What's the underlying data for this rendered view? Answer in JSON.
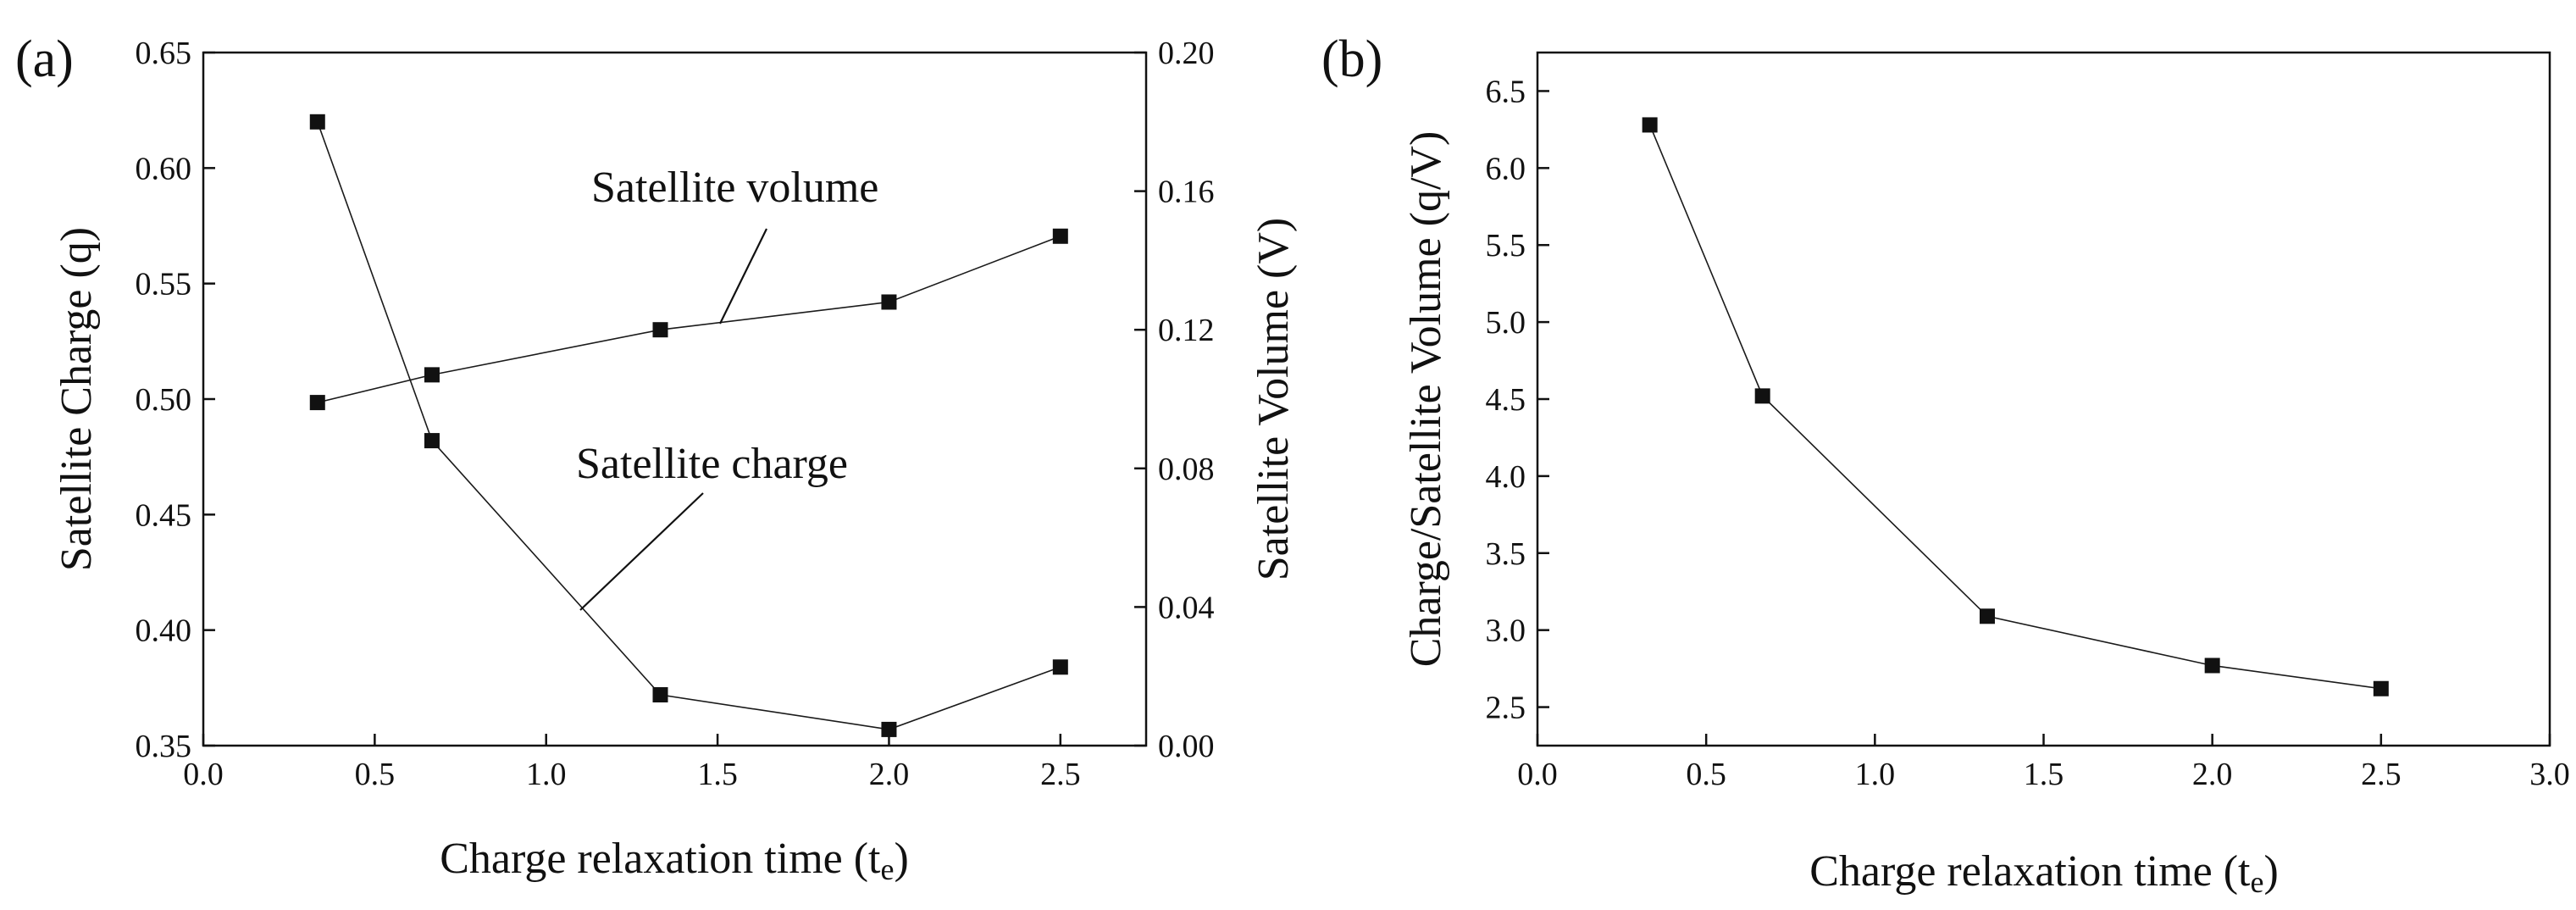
{
  "chart_data": [
    {
      "panel_label": "(a)",
      "type": "line",
      "xlabel": "Charge relaxation time (te)",
      "xlabel_main": "Charge relaxation time (t",
      "xlabel_sub": "e",
      "xlabel_close": ")",
      "ylabel_left": "Satellite Charge (q)",
      "ylabel_right": "Satellite Volume (V)",
      "xlim": [
        0.0,
        2.75
      ],
      "ylim_left": [
        0.35,
        0.65
      ],
      "ylim_right": [
        0.0,
        0.2
      ],
      "xticks": [
        "0.0",
        "0.5",
        "1.0",
        "1.5",
        "2.0",
        "2.5"
      ],
      "xtick_values": [
        0.0,
        0.5,
        1.0,
        1.5,
        2.0,
        2.5
      ],
      "yticks_left": [
        "0.35",
        "0.40",
        "0.45",
        "0.50",
        "0.55",
        "0.60",
        "0.65"
      ],
      "yticks_left_values": [
        0.35,
        0.4,
        0.45,
        0.5,
        0.55,
        0.6,
        0.65
      ],
      "yticks_right": [
        "0.00",
        "0.04",
        "0.08",
        "0.12",
        "0.16",
        "0.20"
      ],
      "yticks_right_values": [
        0.0,
        0.04,
        0.08,
        0.12,
        0.16,
        0.2
      ],
      "series": [
        {
          "name": "Satellite charge",
          "axis": "left",
          "x": [
            0.333,
            0.667,
            1.333,
            2.0,
            2.5
          ],
          "values": [
            0.62,
            0.482,
            0.372,
            0.357,
            0.384
          ]
        },
        {
          "name": "Satellite volume",
          "axis": "right",
          "x": [
            0.333,
            0.667,
            1.333,
            2.0,
            2.5
          ],
          "values": [
            0.099,
            0.107,
            0.12,
            0.128,
            0.147
          ]
        }
      ],
      "annotations": [
        {
          "text": "Satellite volume",
          "points_to_x": 1.45,
          "points_to_y_right": 0.123
        },
        {
          "text": "Satellite charge",
          "points_to_x": 1.1,
          "points_to_y_left": 0.41
        }
      ]
    },
    {
      "panel_label": "(b)",
      "type": "line",
      "xlabel": "Charge relaxation time (te)",
      "xlabel_main": "Charge relaxation time (t",
      "xlabel_sub": "e",
      "xlabel_close": ")",
      "ylabel": "Charge/Satellite Volume (q/V)",
      "xlim": [
        0.0,
        3.0
      ],
      "ylim": [
        2.25,
        6.75
      ],
      "xticks": [
        "0.0",
        "0.5",
        "1.0",
        "1.5",
        "2.0",
        "2.5",
        "3.0"
      ],
      "xtick_values": [
        0.0,
        0.5,
        1.0,
        1.5,
        2.0,
        2.5,
        3.0
      ],
      "yticks": [
        "2.5",
        "3.0",
        "3.5",
        "4.0",
        "4.5",
        "5.0",
        "5.5",
        "6.0",
        "6.5"
      ],
      "ytick_values": [
        2.5,
        3.0,
        3.5,
        4.0,
        4.5,
        5.0,
        5.5,
        6.0,
        6.5
      ],
      "series": [
        {
          "name": "Charge/Satellite Volume",
          "x": [
            0.333,
            0.667,
            1.333,
            2.0,
            2.5
          ],
          "values": [
            6.28,
            4.52,
            3.09,
            2.77,
            2.62
          ]
        }
      ]
    }
  ]
}
